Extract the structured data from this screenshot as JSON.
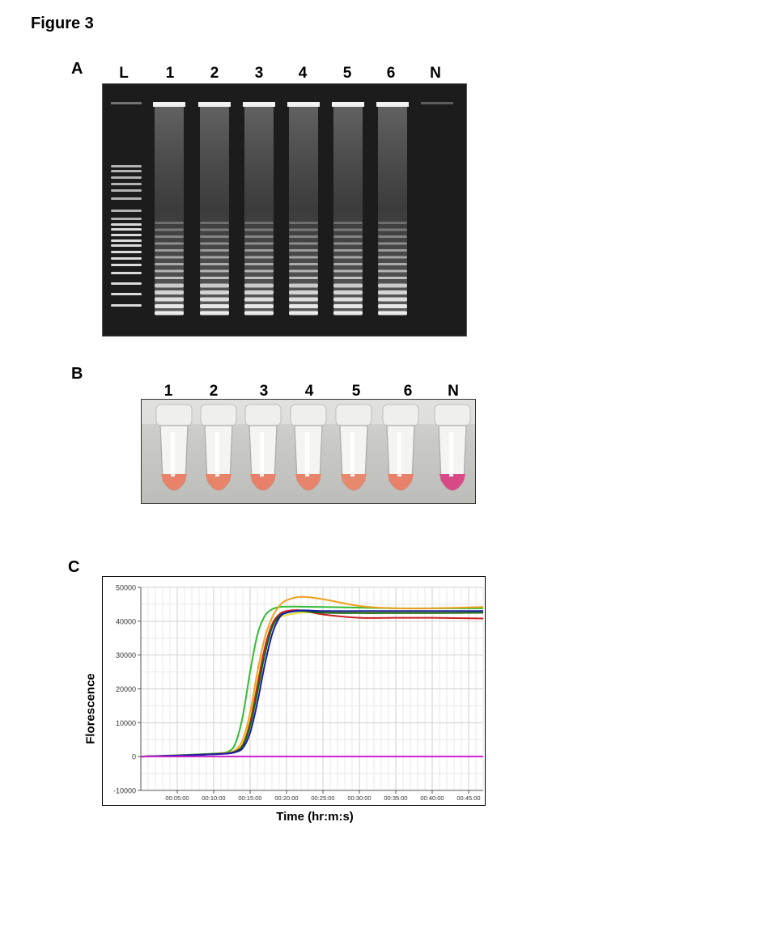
{
  "figure_title": "Figure 3",
  "panel_a": {
    "letter": "A",
    "lane_labels": [
      "L",
      "1",
      "2",
      "3",
      "4",
      "5",
      "6",
      "N"
    ]
  },
  "panel_b": {
    "letter": "B",
    "tube_labels": [
      "1",
      "2",
      "3",
      "4",
      "5",
      "6",
      "N"
    ],
    "tube_colors": [
      "#e8826a",
      "#e88468",
      "#e8806a",
      "#e8846c",
      "#e8886c",
      "#e8806a",
      "#d84a86"
    ]
  },
  "panel_c": {
    "letter": "C",
    "chart_data": {
      "type": "line",
      "xlabel": "Time (hr:m:s)",
      "ylabel": "Florescence",
      "ylim": [
        -10000,
        50000
      ],
      "xlim_minutes": [
        0,
        47
      ],
      "y_ticks": [
        "50000",
        "40000",
        "30000",
        "20000",
        "10000",
        "0",
        "-10000"
      ],
      "x_ticks": [
        "00:05:00",
        "00:10:00",
        "00:15:00",
        "00:20:00",
        "00:25:00",
        "00:30:00",
        "00:35:00",
        "00:40:00",
        "00:45:00"
      ],
      "grid": true,
      "series": [
        {
          "color": "#33bb33",
          "x": [
            0,
            5,
            10,
            12,
            13,
            14,
            15,
            16,
            17,
            18,
            19,
            20,
            22,
            25,
            30,
            35,
            40,
            47
          ],
          "y": [
            0,
            400,
            900,
            1500,
            4000,
            12000,
            25000,
            36000,
            41500,
            43500,
            44200,
            44300,
            44300,
            44200,
            44000,
            43800,
            43800,
            43800
          ]
        },
        {
          "color": "#f0a020",
          "x": [
            0,
            5,
            10,
            12,
            13,
            14,
            15,
            16,
            17,
            18,
            19,
            20,
            22,
            25,
            30,
            35,
            40,
            47
          ],
          "y": [
            0,
            300,
            800,
            1200,
            2000,
            5000,
            13000,
            25000,
            35000,
            41000,
            44500,
            46200,
            47200,
            46500,
            44500,
            43800,
            43800,
            44200
          ]
        },
        {
          "color": "#e8e040",
          "x": [
            0,
            5,
            10,
            12,
            13,
            14,
            15,
            16,
            17,
            18,
            19,
            20,
            22,
            25,
            30,
            35,
            40,
            47
          ],
          "y": [
            0,
            300,
            700,
            1100,
            1800,
            4200,
            11000,
            22000,
            32000,
            38500,
            41000,
            41800,
            42500,
            42700,
            42700,
            42700,
            42700,
            42700
          ]
        },
        {
          "color": "#cc2222",
          "x": [
            0,
            5,
            10,
            12,
            13,
            14,
            15,
            16,
            17,
            18,
            19,
            20,
            22,
            25,
            30,
            35,
            40,
            47
          ],
          "y": [
            0,
            300,
            700,
            1000,
            1600,
            3500,
            10000,
            21000,
            32000,
            39000,
            42000,
            43000,
            43200,
            42000,
            41000,
            41000,
            41000,
            40800
          ]
        },
        {
          "color": "#116611",
          "x": [
            0,
            5,
            10,
            12,
            13,
            14,
            15,
            16,
            17,
            18,
            19,
            20,
            22,
            25,
            30,
            35,
            40,
            47
          ],
          "y": [
            0,
            300,
            700,
            1000,
            1500,
            3200,
            9000,
            19000,
            30000,
            38000,
            41500,
            42500,
            43000,
            42500,
            42400,
            42400,
            42400,
            42500
          ]
        },
        {
          "color": "#1a1aaa",
          "x": [
            0,
            5,
            10,
            12,
            13,
            14,
            15,
            16,
            17,
            18,
            19,
            20,
            22,
            25,
            30,
            35,
            40,
            47
          ],
          "y": [
            0,
            300,
            700,
            900,
            1300,
            2500,
            7000,
            16000,
            27000,
            36000,
            41000,
            42500,
            43200,
            43000,
            43000,
            43000,
            43000,
            43000
          ]
        },
        {
          "color": "#cc22cc",
          "x": [
            0,
            47
          ],
          "y": [
            0,
            0
          ]
        }
      ]
    }
  }
}
